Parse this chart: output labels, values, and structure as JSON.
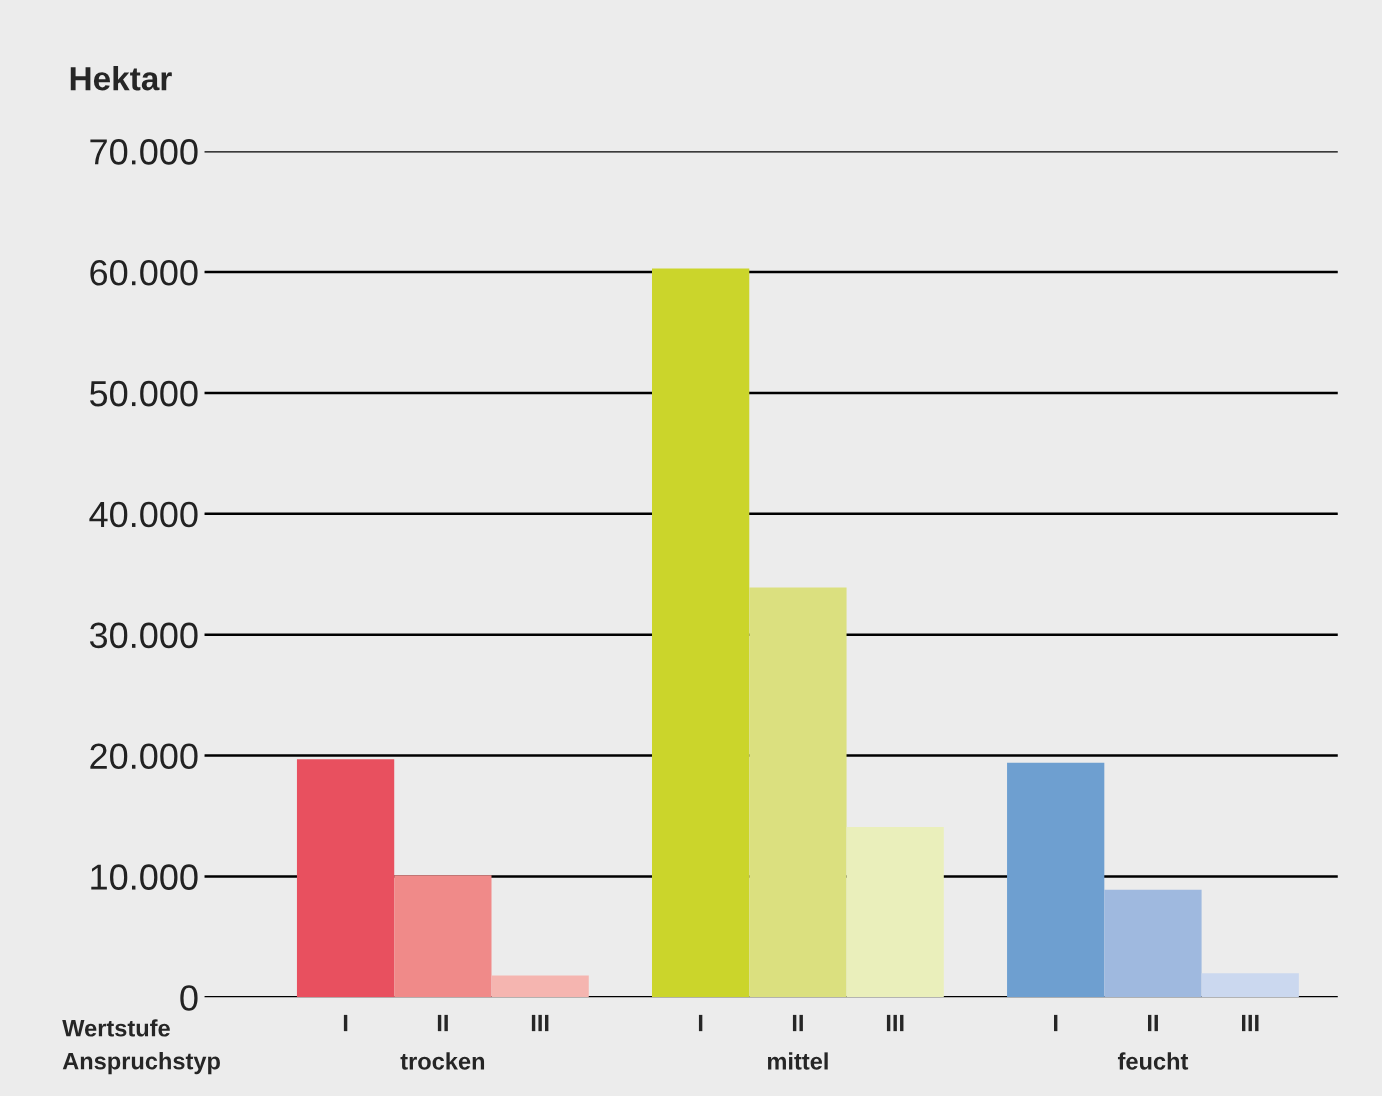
{
  "chart_data": {
    "type": "bar",
    "title": "Hektar",
    "categories": [
      "I",
      "II",
      "III",
      "I",
      "II",
      "III",
      "I",
      "II",
      "III"
    ],
    "values": [
      19700,
      10100,
      1800,
      60300,
      33900,
      14100,
      19400,
      8900,
      2000
    ],
    "colors": [
      "#e8505f",
      "#f08a89",
      "#f5b5b0",
      "#cbd52b",
      "#dbe07f",
      "#eaefbb",
      "#6e9fd0",
      "#9fb9df",
      "#cbd8ef"
    ],
    "ylim": [
      0,
      70000
    ],
    "yticks": [
      0,
      {
        "value": 10000,
        "label": "10.000"
      },
      {
        "value": 20000,
        "label": "20.000"
      },
      {
        "value": 30000,
        "label": "30.000"
      },
      {
        "value": 40000,
        "label": "40.000"
      },
      {
        "value": 50000,
        "label": "50.000"
      },
      {
        "value": 60000,
        "label": "60.000"
      },
      {
        "value": 70000,
        "label": "70.000"
      }
    ],
    "grid": "y",
    "annotations": [
      "Wertstufe",
      "Anspruchstyp",
      "trocken",
      "mittel",
      "feucht"
    ]
  }
}
